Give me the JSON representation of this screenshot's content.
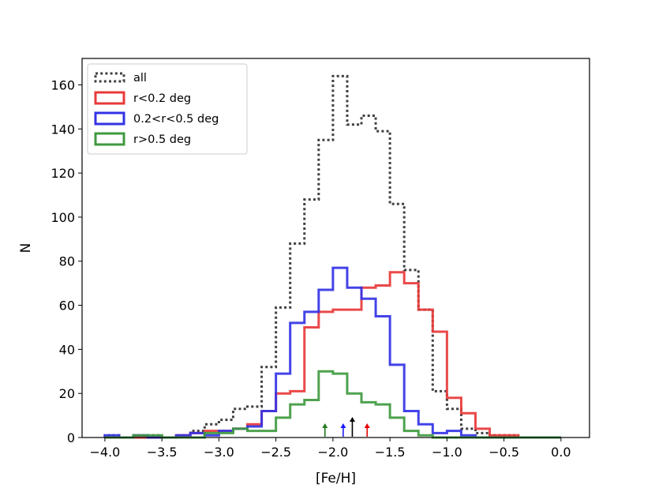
{
  "chart_data": {
    "type": "histogram",
    "title": "",
    "xlabel": "[Fe/H]",
    "ylabel": "N",
    "xlim": [
      -4.2,
      0.25
    ],
    "ylim": [
      0,
      172
    ],
    "xticks": [
      -4.0,
      -3.5,
      -3.0,
      -2.5,
      -2.0,
      -1.5,
      -1.0,
      -0.5,
      0.0
    ],
    "xtick_labels": [
      "−4.0",
      "−3.5",
      "−3.0",
      "−2.5",
      "−2.0",
      "−1.5",
      "−1.0",
      "−0.5",
      "0.0"
    ],
    "yticks": [
      0,
      20,
      40,
      60,
      80,
      100,
      120,
      140,
      160
    ],
    "ytick_labels": [
      "0",
      "20",
      "40",
      "60",
      "80",
      "100",
      "120",
      "140",
      "160"
    ],
    "bin_edges": [
      -4.0,
      -3.875,
      -3.75,
      -3.625,
      -3.5,
      -3.375,
      -3.25,
      -3.125,
      -3.0,
      -2.875,
      -2.75,
      -2.625,
      -2.5,
      -2.375,
      -2.25,
      -2.125,
      -2.0,
      -1.875,
      -1.75,
      -1.625,
      -1.5,
      -1.375,
      -1.25,
      -1.125,
      -1.0,
      -0.875,
      -0.75,
      -0.625,
      -0.5,
      -0.375,
      -0.25,
      -0.125,
      0.0
    ],
    "series": [
      {
        "name": "all",
        "color": "#404040",
        "style": "dotted",
        "counts": [
          1,
          0,
          1,
          1,
          0,
          1,
          3,
          6,
          8,
          13,
          14,
          32,
          59,
          88,
          108,
          135,
          164,
          142,
          146,
          139,
          106,
          76,
          58,
          21,
          13,
          4,
          2,
          1,
          1,
          0,
          0,
          0
        ]
      },
      {
        "name": "r<0.2 deg",
        "color": "#e83a3a",
        "style": "solid",
        "counts": [
          0,
          0,
          0,
          0,
          0,
          1,
          2,
          3,
          3,
          4,
          6,
          12,
          20,
          21,
          50,
          57,
          58,
          58,
          68,
          69,
          75,
          70,
          58,
          48,
          18,
          11,
          4,
          1,
          1,
          0,
          0,
          0
        ]
      },
      {
        "name": "0.2<r<0.5 deg",
        "color": "#3333e6",
        "style": "solid",
        "counts": [
          1,
          0,
          1,
          0,
          0,
          1,
          2,
          1,
          3,
          4,
          5,
          12,
          29,
          52,
          57,
          67,
          77,
          68,
          63,
          55,
          33,
          12,
          6,
          2,
          3,
          1,
          0,
          0,
          0,
          0,
          0,
          0
        ]
      },
      {
        "name": "r>0.5 deg",
        "color": "#3f9a3f",
        "style": "solid",
        "counts": [
          0,
          0,
          1,
          1,
          0,
          0,
          0,
          2,
          2,
          4,
          3,
          3,
          9,
          15,
          17,
          30,
          29,
          20,
          16,
          15,
          9,
          3,
          1,
          0,
          0,
          0,
          0,
          0,
          0,
          0,
          0,
          0
        ]
      }
    ],
    "markers": [
      {
        "name": "r>0.5 deg mean",
        "x": -2.07,
        "color": "#1e7b1e"
      },
      {
        "name": "0.2<r<0.5 deg mean",
        "x": -1.91,
        "color": "#1a1aff"
      },
      {
        "name": "all mean",
        "x": -1.83,
        "color": "#000000"
      },
      {
        "name": "r<0.2 deg mean",
        "x": -1.7,
        "color": "#e60000"
      }
    ],
    "legend": {
      "location": "upper-left",
      "entries": [
        "all",
        "r<0.2 deg",
        "0.2<r<0.5 deg",
        "r>0.5 deg"
      ]
    }
  }
}
